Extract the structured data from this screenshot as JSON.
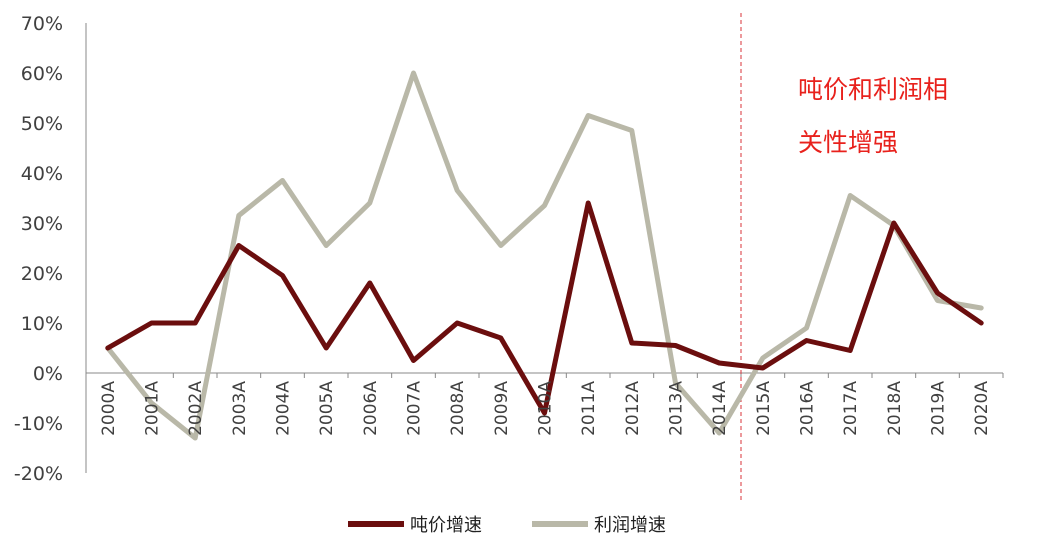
{
  "chart_data": {
    "type": "line",
    "categories": [
      "2000A",
      "2001A",
      "2002A",
      "2003A",
      "2004A",
      "2005A",
      "2006A",
      "2007A",
      "2008A",
      "2009A",
      "2010A",
      "2011A",
      "2012A",
      "2013A",
      "2014A",
      "2015A",
      "2016A",
      "2017A",
      "2018A",
      "2019A",
      "2020A"
    ],
    "series": [
      {
        "name": "吨价增速",
        "color": "#6b0e0e",
        "values": [
          5,
          10,
          10,
          25.5,
          19.5,
          5,
          18,
          2.5,
          10,
          7,
          -8,
          34,
          6,
          5.5,
          2,
          1,
          6.5,
          4.5,
          30,
          16,
          10
        ]
      },
      {
        "name": "利润增速",
        "color": "#b9b8a8",
        "values": [
          5,
          -6,
          -13,
          31.5,
          38.5,
          25.5,
          34,
          60,
          36.5,
          25.5,
          33.5,
          51.5,
          48.5,
          -2,
          -12,
          3,
          9,
          35.5,
          29.5,
          14.5,
          13
        ]
      }
    ],
    "yticks": [
      "70%",
      "60%",
      "50%",
      "40%",
      "30%",
      "20%",
      "10%",
      "0%",
      "-10%",
      "-20%"
    ],
    "ylim": [
      -20,
      70
    ],
    "divider_after": "2015A",
    "annotation": [
      "吨价和利润相",
      "关性增强"
    ],
    "legend_position": "bottom-center",
    "grid": false
  }
}
